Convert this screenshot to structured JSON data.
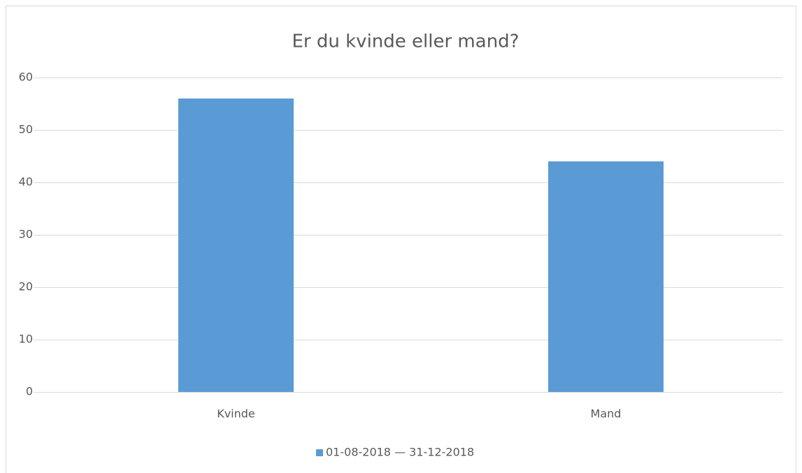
{
  "chart_data": {
    "type": "bar",
    "title": "Er du kvinde eller mand?",
    "categories": [
      "Kvinde",
      "Mand"
    ],
    "series": [
      {
        "name": "01-08-2018 — 31-12-2018",
        "color": "#5b9bd5",
        "values": [
          56,
          44
        ]
      }
    ],
    "ylim": [
      0,
      60
    ],
    "yticks": [
      0,
      10,
      20,
      30,
      40,
      50,
      60
    ],
    "grid": true,
    "legend": "bottom"
  }
}
